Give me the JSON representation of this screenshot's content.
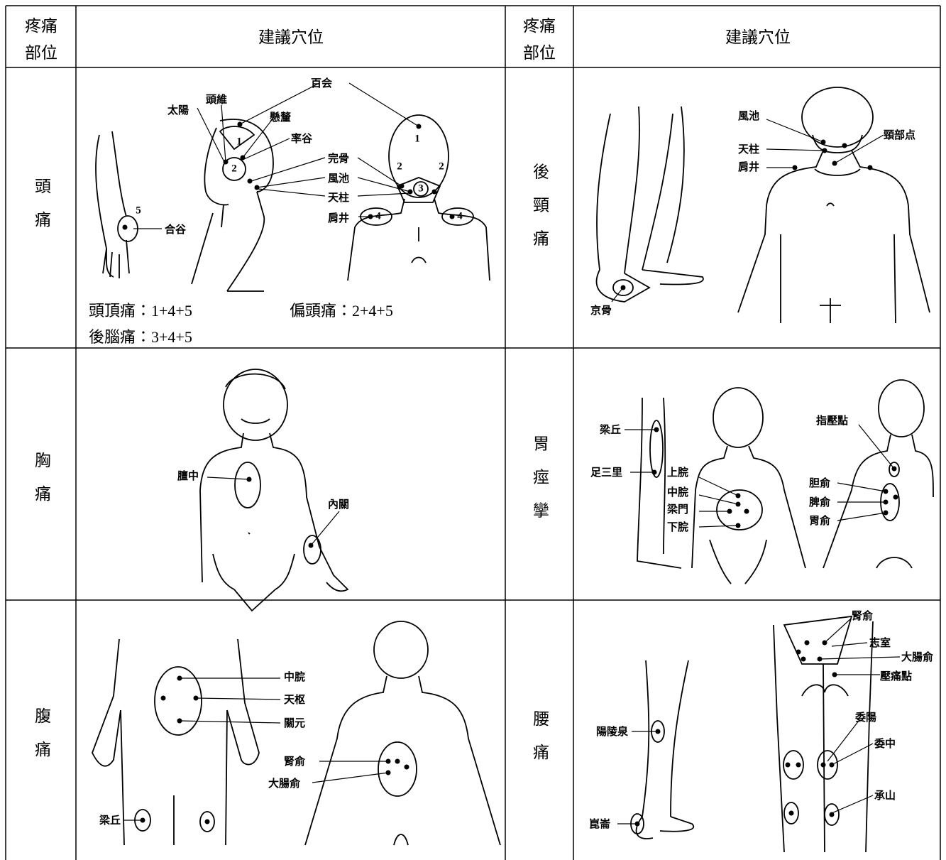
{
  "header": {
    "pain_site": [
      "疼痛",
      "部位"
    ],
    "points": "建議穴位"
  },
  "rows": [
    {
      "left": {
        "site": "頭痛",
        "labels": [
          "百会",
          "頭維",
          "太陽",
          "懸釐",
          "率谷",
          "完骨",
          "風池",
          "天柱",
          "肩井",
          "合谷"
        ],
        "markers": [
          "1",
          "2",
          "3",
          "4",
          "5"
        ],
        "notes": [
          "頭頂痛：1+4+5",
          "偏頭痛：2+4+5",
          "後腦痛：3+4+5"
        ]
      },
      "right": {
        "site": "後頸痛",
        "labels": [
          "風池",
          "頸部点",
          "天柱",
          "肩井",
          "京骨"
        ]
      }
    },
    {
      "left": {
        "site": "胸痛",
        "labels": [
          "膻中",
          "內關"
        ]
      },
      "right": {
        "site": "胃痙攣",
        "labels": [
          "梁丘",
          "足三里",
          "上脘",
          "中脘",
          "梁門",
          "下脘",
          "指壓點",
          "胆俞",
          "脾俞",
          "胃俞"
        ]
      }
    },
    {
      "left": {
        "site": "腹痛",
        "labels": [
          "中脘",
          "天枢",
          "關元",
          "腎俞",
          "大腸俞",
          "梁丘"
        ]
      },
      "right": {
        "site": "腰痛",
        "labels": [
          "腎俞",
          "志室",
          "大腸俞",
          "壓痛點",
          "委陽",
          "委中",
          "承山",
          "陽陵泉",
          "崑崙"
        ]
      }
    }
  ]
}
